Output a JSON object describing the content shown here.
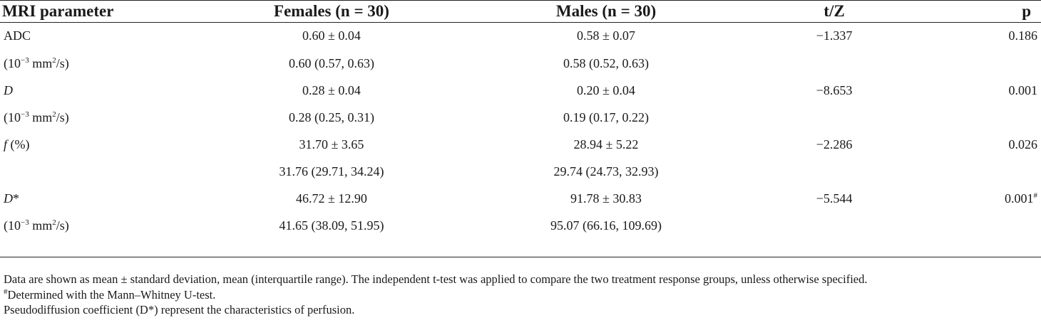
{
  "headers": {
    "param": "MRI parameter",
    "females": "Females (n = 30)",
    "males": "Males (n = 30)",
    "tz": "t/Z",
    "p": "p"
  },
  "rows": [
    {
      "param": "ADC",
      "females": "0.60 ± 0.04",
      "males": "0.58 ± 0.07",
      "tz": "−1.337",
      "p": "0.186"
    },
    {
      "param": "(10−3 mm2/s)",
      "females": "0.60 (0.57, 0.63)",
      "males": "0.58 (0.52, 0.63)",
      "tz": "",
      "p": ""
    },
    {
      "param": "D",
      "females": "0.28 ± 0.04",
      "males": "0.20 ± 0.04",
      "tz": "−8.653",
      "p": "0.001"
    },
    {
      "param": "(10−3 mm2/s)",
      "females": "0.28 (0.25, 0.31)",
      "males": "0.19 (0.17, 0.22)",
      "tz": "",
      "p": ""
    },
    {
      "param": "f (%)",
      "females": "31.70 ± 3.65",
      "males": "28.94 ± 5.22",
      "tz": "−2.286",
      "p": "0.026"
    },
    {
      "param": "",
      "females": "31.76 (29.71, 34.24)",
      "males": "29.74 (24.73, 32.93)",
      "tz": "",
      "p": ""
    },
    {
      "param": "D*",
      "females": "46.72 ± 12.90",
      "males": "91.78 ± 30.83",
      "tz": "−5.544",
      "p": "0.001#"
    },
    {
      "param": "(10−3 mm2/s)",
      "females": "41.65 (38.09, 51.95)",
      "males": "95.07 (66.16, 109.69)",
      "tz": "",
      "p": ""
    }
  ],
  "unit_parts": {
    "pre": "(10",
    "exp": "−3",
    "mid": " mm",
    "sq": "2",
    "post": "/s)"
  },
  "d_symbol": "D",
  "f_parts": {
    "sym": "f",
    "rest": " (%)"
  },
  "dstar_parts": {
    "sym": "D",
    "star": "*"
  },
  "p_hash_parts": {
    "value": "0.001",
    "mark": "#"
  },
  "footnotes": {
    "line1": "Data are shown as mean ± standard deviation, mean (interquartile range). The independent t-test was applied to compare the two treatment response groups, unless otherwise specified.",
    "line2_mark": "#",
    "line2_text": "Determined with the Mann–Whitney U-test.",
    "line3": "Pseudodiffusion coefficient (D*) represent the characteristics of perfusion."
  }
}
